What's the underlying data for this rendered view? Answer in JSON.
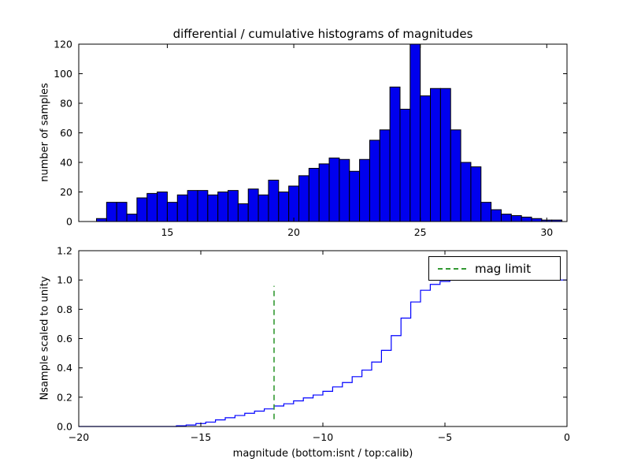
{
  "figure": {
    "background": "#ffffff"
  },
  "chart_data": [
    {
      "type": "bar",
      "subplot": "top-differential-histogram",
      "title": "differential / cumulative histograms of magnitudes",
      "xlabel": "",
      "ylabel": "number of samples",
      "xlim": [
        11.5,
        30.8
      ],
      "ylim": [
        0,
        120
      ],
      "xtick_values": [
        15,
        20,
        25,
        30
      ],
      "xtick_labels": [
        "15",
        "20",
        "25",
        "30"
      ],
      "ytick_values": [
        0,
        20,
        40,
        60,
        80,
        100,
        120
      ],
      "ytick_labels": [
        "0",
        "20",
        "40",
        "60",
        "80",
        "100",
        "120"
      ],
      "bar_color": "#0000ee",
      "bar_edge_color": "#000000",
      "bin_start": 12.2,
      "bin_width": 0.4,
      "values": [
        2,
        13,
        13,
        5,
        16,
        19,
        20,
        13,
        18,
        21,
        21,
        18,
        20,
        21,
        12,
        22,
        18,
        28,
        20,
        24,
        31,
        36,
        39,
        43,
        42,
        34,
        42,
        55,
        62,
        91,
        76,
        120,
        85,
        90,
        90,
        62,
        40,
        37,
        13,
        8,
        5,
        4,
        3,
        2,
        1,
        1
      ]
    },
    {
      "type": "line",
      "subplot": "bottom-cumulative-histogram",
      "title": "",
      "xlabel": "magnitude (bottom:isnt / top:calib)",
      "ylabel": "Nsample scaled to unity",
      "xlim": [
        -20,
        0
      ],
      "ylim": [
        0,
        1.2
      ],
      "xtick_values": [
        -20,
        -15,
        -10,
        -5,
        0
      ],
      "xtick_labels": [
        "−20",
        "−15",
        "−10",
        "−5",
        "0"
      ],
      "ytick_values": [
        0,
        0.2,
        0.4,
        0.6,
        0.8,
        1.0,
        1.2
      ],
      "ytick_labels": [
        "0.0",
        "0.2",
        "0.4",
        "0.6",
        "0.8",
        "1.0",
        "1.2"
      ],
      "series": [
        {
          "name": "cumulative-fraction",
          "color": "#0000ff",
          "style": "step",
          "x": [
            -20,
            -16.0,
            -15.6,
            -15.2,
            -14.8,
            -14.4,
            -14.0,
            -13.6,
            -13.2,
            -12.8,
            -12.4,
            -12.0,
            -11.6,
            -11.2,
            -10.8,
            -10.4,
            -10.0,
            -9.6,
            -9.2,
            -8.8,
            -8.4,
            -8.0,
            -7.6,
            -7.2,
            -6.8,
            -6.4,
            -6.0,
            -5.6,
            -5.2,
            -4.8,
            0
          ],
          "y": [
            0,
            0.005,
            0.01,
            0.02,
            0.03,
            0.045,
            0.06,
            0.075,
            0.09,
            0.105,
            0.12,
            0.14,
            0.155,
            0.175,
            0.195,
            0.215,
            0.24,
            0.27,
            0.3,
            0.34,
            0.385,
            0.44,
            0.52,
            0.62,
            0.74,
            0.85,
            0.93,
            0.97,
            0.99,
            1.0,
            1.0
          ]
        }
      ],
      "vline": {
        "x": -12,
        "y_from": 0.05,
        "y_to": 0.96,
        "color": "#339933",
        "dash": true,
        "label": "mag limit"
      },
      "legend": {
        "position": "upper right",
        "entries": [
          {
            "label": "mag limit",
            "color": "#339933",
            "dash": true
          }
        ]
      }
    }
  ]
}
